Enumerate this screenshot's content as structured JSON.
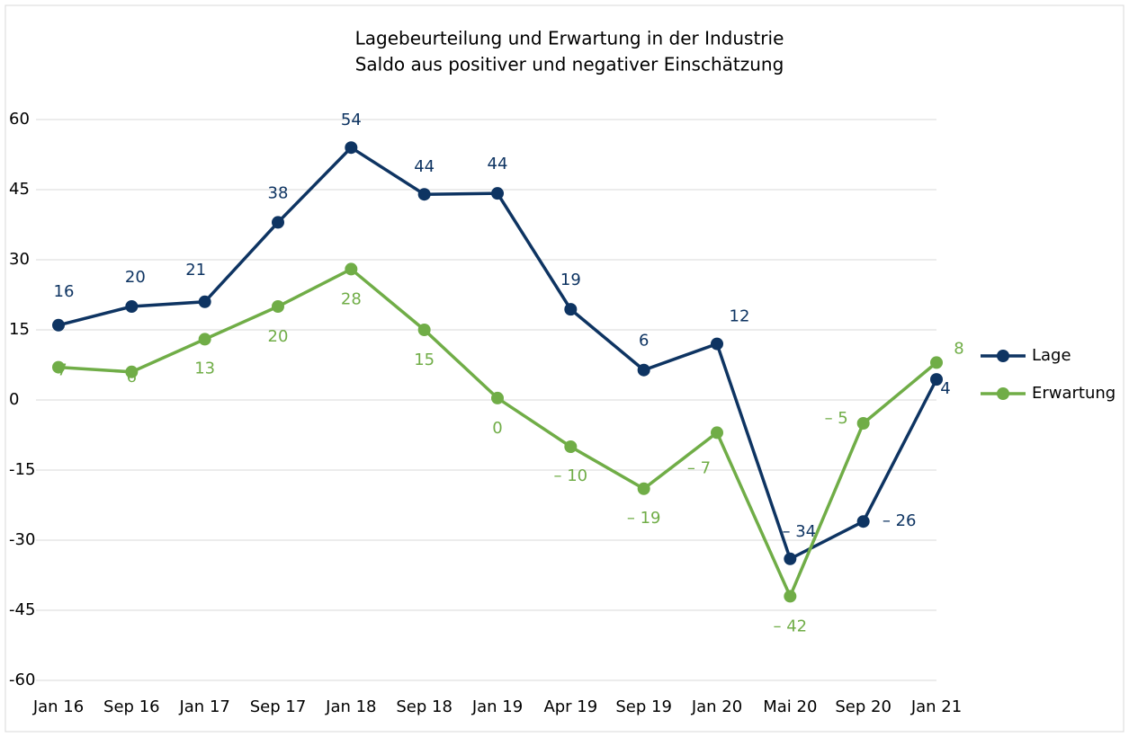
{
  "chart_data": {
    "type": "line",
    "title": "Lagebeurteilung und Erwartung in der Industrie",
    "subtitle": "Saldo aus positiver und negativer Einschätzung",
    "categories": [
      "Jan 16",
      "Sep 16",
      "Jan 17",
      "Sep 17",
      "Jan 18",
      "Sep 18",
      "Jan 19",
      "Apr 19",
      "Sep 19",
      "Jan 20",
      "Mai 20",
      "Sep 20",
      "Jan 21"
    ],
    "series": [
      {
        "name": "Lage",
        "color": "#0e3462",
        "values": [
          16,
          20,
          21,
          38,
          54,
          44,
          44.2,
          19.4,
          6.4,
          12,
          -34,
          -26,
          4.4
        ],
        "value_labels": [
          "16",
          "20",
          "21",
          "38",
          "54",
          "44",
          "44",
          "19",
          "6",
          "12",
          "– 34",
          "– 26",
          "4"
        ]
      },
      {
        "name": "Erwartung",
        "color": "#70ad47",
        "values": [
          7,
          6,
          13,
          20,
          28,
          15,
          0.4,
          -10,
          -19,
          -7,
          -42,
          -5,
          8
        ],
        "value_labels": [
          "7",
          "6",
          "13",
          "20",
          "28",
          "15",
          "0",
          "– 10",
          "– 19",
          "– 7",
          "– 42",
          "– 5",
          "8"
        ]
      }
    ],
    "ylim": [
      -60,
      60
    ],
    "yticks": [
      -60,
      -45,
      -30,
      -15,
      0,
      15,
      30,
      45,
      60
    ],
    "grid": true,
    "legend": "right"
  }
}
